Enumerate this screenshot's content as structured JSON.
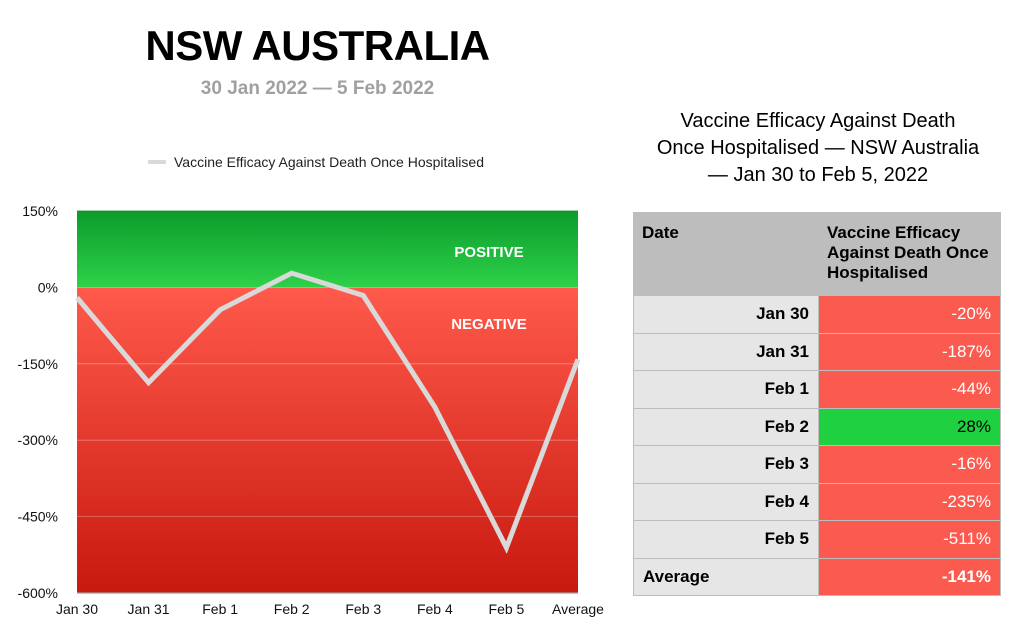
{
  "header": {
    "title": "NSW AUSTRALIA",
    "subtitle": "30 Jan 2022 — 5 Feb 2022"
  },
  "chart_data": {
    "type": "line",
    "categories": [
      "Jan 30",
      "Jan 31",
      "Feb 1",
      "Feb 2",
      "Feb 3",
      "Feb 4",
      "Feb 5",
      "Average"
    ],
    "series": [
      {
        "name": "Vaccine Efficacy Against Death Once Hospitalised",
        "values": [
          -20,
          -187,
          -44,
          28,
          -16,
          -235,
          -511,
          -141
        ],
        "color": "#d9d9d9"
      }
    ],
    "ylim": [
      -600,
      150
    ],
    "yticks": [
      150,
      0,
      -150,
      -300,
      -450,
      -600
    ],
    "ytick_labels": [
      "150%",
      "0%",
      "-150%",
      "-300%",
      "-450%",
      "-600%"
    ],
    "grid": true,
    "legend_position": "top",
    "regions": [
      {
        "label": "POSITIVE",
        "from": 0,
        "to": 150,
        "color_top": "#0b9c2b",
        "color_bottom": "#2ed14a"
      },
      {
        "label": "NEGATIVE",
        "from": -600,
        "to": 0,
        "color_top": "#ff5a4c",
        "color_bottom": "#c8190f"
      }
    ]
  },
  "table": {
    "title_lines": [
      "Vaccine Efficacy Against Death",
      "Once Hospitalised — NSW Australia",
      "— Jan 30 to Feb 5, 2022"
    ],
    "col_date": "Date",
    "col_value": "Vaccine Efficacy Against Death Once Hospitalised",
    "rows": [
      {
        "date": "Jan 30",
        "value": "-20%"
      },
      {
        "date": "Jan 31",
        "value": "-187%"
      },
      {
        "date": "Feb 1",
        "value": "-44%"
      },
      {
        "date": "Feb 2",
        "value": "28%"
      },
      {
        "date": "Feb 3",
        "value": "-16%"
      },
      {
        "date": "Feb 4",
        "value": "-235%"
      },
      {
        "date": "Feb 5",
        "value": "-511%"
      },
      {
        "date": "Average",
        "value": "-141%"
      }
    ],
    "colors": {
      "negative": "#fb5a4e",
      "positive": "#1fd141",
      "header": "#bdbdbd",
      "date_bg": "#e6e6e6"
    }
  }
}
